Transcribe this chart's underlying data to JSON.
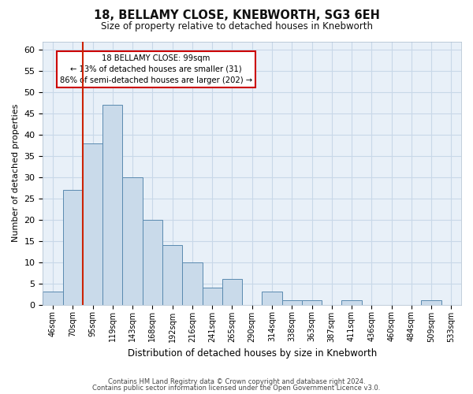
{
  "title": "18, BELLAMY CLOSE, KNEBWORTH, SG3 6EH",
  "subtitle": "Size of property relative to detached houses in Knebworth",
  "xlabel": "Distribution of detached houses by size in Knebworth",
  "ylabel": "Number of detached properties",
  "categories": [
    "46sqm",
    "70sqm",
    "95sqm",
    "119sqm",
    "143sqm",
    "168sqm",
    "192sqm",
    "216sqm",
    "241sqm",
    "265sqm",
    "290sqm",
    "314sqm",
    "338sqm",
    "363sqm",
    "387sqm",
    "411sqm",
    "436sqm",
    "460sqm",
    "484sqm",
    "509sqm",
    "533sqm"
  ],
  "values": [
    3,
    27,
    38,
    47,
    30,
    20,
    14,
    10,
    4,
    6,
    0,
    3,
    1,
    1,
    0,
    1,
    0,
    0,
    0,
    1,
    0
  ],
  "bar_color": "#c9daea",
  "bar_edge_color": "#5a8ab0",
  "property_label": "18 BELLAMY CLOSE: 99sqm",
  "annotation_line1": "← 13% of detached houses are smaller (31)",
  "annotation_line2": "86% of semi-detached houses are larger (202) →",
  "annotation_box_color": "#ffffff",
  "annotation_box_edge": "#cc0000",
  "vline_color": "#cc2200",
  "vline_x": 1.5,
  "ylim": [
    0,
    62
  ],
  "yticks": [
    0,
    5,
    10,
    15,
    20,
    25,
    30,
    35,
    40,
    45,
    50,
    55,
    60
  ],
  "grid_color": "#c8d8e8",
  "bg_color": "#e8f0f8",
  "footer1": "Contains HM Land Registry data © Crown copyright and database right 2024.",
  "footer2": "Contains public sector information licensed under the Open Government Licence v3.0."
}
